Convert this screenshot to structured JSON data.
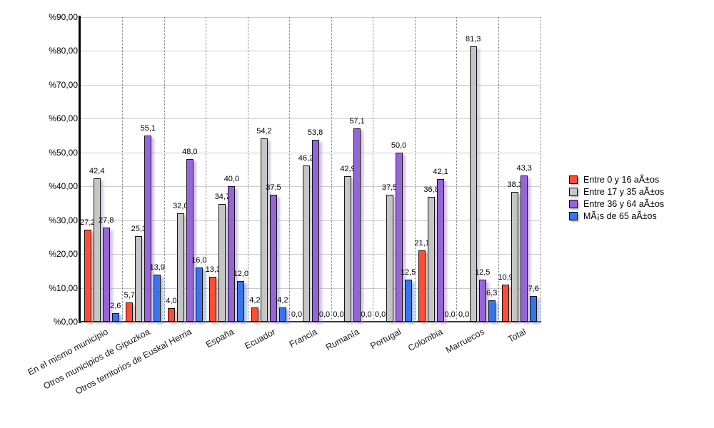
{
  "chart_data": {
    "type": "bar",
    "title": "",
    "xlabel": "",
    "ylabel": "",
    "ylim": [
      0,
      90
    ],
    "grid": true,
    "legend_position": "right",
    "decimal_separator": ",",
    "y_tick_labels": [
      "%90,00",
      "%80,00",
      "%70,00",
      "%60,00",
      "%50,00",
      "%40,00",
      "%30,00",
      "%20,00",
      "%10,00",
      "%0,00"
    ],
    "categories": [
      "En el mismo municipio",
      "Otros municipios de Gipuzkoa",
      "Otros territorios de Euskal Herria",
      "España",
      "Ecuador",
      "Francia",
      "Rumanía",
      "Portugal",
      "Colombia",
      "Marruecos",
      "Total"
    ],
    "series": [
      {
        "name": "Entre 0 y 16 aÃ±os",
        "color": "#f4503a",
        "shadow_color": "rgba(244,100,80,0.45)",
        "values": [
          27.2,
          5.7,
          4.0,
          13.3,
          4.2,
          0.0,
          0.0,
          0.0,
          21.1,
          0.0,
          10.9
        ]
      },
      {
        "name": "Entre 17 y 35 aÃ±os",
        "color": "#c5c5c5",
        "shadow_color": "rgba(150,150,175,0.45)",
        "values": [
          42.4,
          25.3,
          32.0,
          34.7,
          54.2,
          46.2,
          42.9,
          37.5,
          36.8,
          81.3,
          38.3
        ]
      },
      {
        "name": "Entre 36 y 64 aÃ±os",
        "color": "#9667d4",
        "shadow_color": "rgba(160,115,225,0.45)",
        "values": [
          27.8,
          55.1,
          48.0,
          40.0,
          37.5,
          53.8,
          57.1,
          50.0,
          42.1,
          12.5,
          43.3
        ]
      },
      {
        "name": "MÃ¡s de 65 aÃ±os",
        "color": "#3b74e4",
        "shadow_color": "rgba(90,140,235,0.5)",
        "values": [
          2.6,
          13.9,
          16.0,
          12.0,
          4.2,
          0.0,
          0.0,
          12.5,
          0.0,
          6.3,
          7.6
        ]
      }
    ]
  }
}
